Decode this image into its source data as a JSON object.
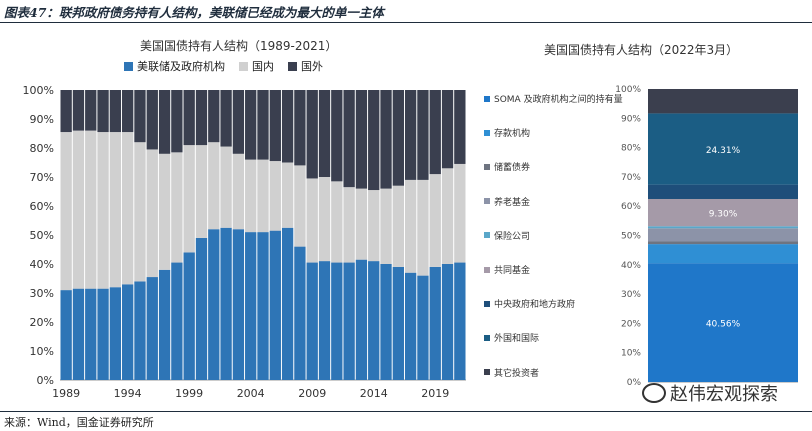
{
  "figure_title": "图表47：联邦政府债务持有人结构，美联储已经成为最大的单一主体",
  "source": "来源：Wind，国金证券研究所",
  "watermark": "赵伟宏观探索",
  "colors": {
    "fed": "#2e75b6",
    "domestic": "#d0d0d0",
    "foreign": "#3a3f4f"
  },
  "chart_data": [
    {
      "type": "bar",
      "title": "美国国债持有人结构（1989-2021）",
      "stacked": true,
      "percent": true,
      "ylim": [
        0,
        100
      ],
      "yticks": [
        "0%",
        "10%",
        "20%",
        "30%",
        "40%",
        "50%",
        "60%",
        "70%",
        "80%",
        "90%",
        "100%"
      ],
      "xtick_labels": [
        "1989",
        "1994",
        "1999",
        "2004",
        "2009",
        "2014",
        "2019"
      ],
      "legend": {
        "position": "top",
        "entries": [
          "美联储及政府机构",
          "国内",
          "国外"
        ]
      },
      "categories": [
        "1989",
        "1990",
        "1991",
        "1992",
        "1993",
        "1994",
        "1995",
        "1996",
        "1997",
        "1998",
        "1999",
        "2000",
        "2001",
        "2002",
        "2003",
        "2004",
        "2005",
        "2006",
        "2007",
        "2008",
        "2009",
        "2010",
        "2011",
        "2012",
        "2013",
        "2014",
        "2015",
        "2016",
        "2017",
        "2018",
        "2019",
        "2020",
        "2021"
      ],
      "series": [
        {
          "name": "美联储及政府机构",
          "color": "#2e75b6",
          "values": [
            31,
            31.5,
            31.5,
            31.5,
            32,
            33,
            34,
            35.5,
            38,
            40.5,
            44,
            49,
            52,
            52.5,
            52,
            51,
            51,
            51.5,
            52.5,
            46,
            40.5,
            41,
            40.5,
            40.5,
            41.5,
            41,
            40,
            39,
            37,
            36,
            39,
            40,
            40.5
          ]
        },
        {
          "name": "国内",
          "color": "#d0d0d0",
          "values": [
            54.5,
            54.5,
            54.5,
            54,
            53.5,
            52.5,
            48,
            44,
            40,
            38,
            37,
            32,
            30,
            28,
            26,
            25,
            25,
            24,
            22.5,
            28,
            29,
            29,
            28,
            26,
            24.5,
            24.5,
            26,
            28,
            32,
            33,
            32,
            33,
            34
          ]
        },
        {
          "name": "国外",
          "color": "#3a3f4f",
          "values": [
            14.5,
            14,
            14,
            14.5,
            14.5,
            14.5,
            18,
            20.5,
            22,
            21.5,
            19,
            19,
            18,
            19.5,
            22,
            24,
            24,
            24.5,
            25,
            26,
            30.5,
            30,
            31.5,
            33.5,
            34,
            34.5,
            34,
            33,
            31,
            31,
            29,
            27,
            25.5
          ]
        }
      ]
    },
    {
      "type": "bar",
      "title": "美国国债持有人结构（2022年3月）",
      "stacked": true,
      "percent": true,
      "ylim": [
        0,
        100
      ],
      "yticks": [
        "0%",
        "10%",
        "20%",
        "30%",
        "40%",
        "50%",
        "60%",
        "70%",
        "80%",
        "90%",
        "100%"
      ],
      "legend": {
        "position": "left"
      },
      "series": [
        {
          "name": "SOMA 及政府机构之间的持有量",
          "value": 40.56,
          "label": "40.56%",
          "color": "#1f77c9"
        },
        {
          "name": "存款机构",
          "value": 6.5,
          "label": "",
          "color": "#2f8fd4"
        },
        {
          "name": "储蓄债券",
          "value": 0.9,
          "label": "",
          "color": "#6e7480"
        },
        {
          "name": "养老基金",
          "value": 4.5,
          "label": "",
          "color": "#8c93a8"
        },
        {
          "name": "保险公司",
          "value": 0.7,
          "label": "",
          "color": "#5aa7c9"
        },
        {
          "name": "共同基金",
          "value": 9.3,
          "label": "9.30%",
          "color": "#a59aa8"
        },
        {
          "name": "中央政府和地方政府",
          "value": 4.9,
          "label": "",
          "color": "#1e4e7a"
        },
        {
          "name": "外国和国际",
          "value": 24.31,
          "label": "24.31%",
          "color": "#1b5d84"
        },
        {
          "name": "其它投资者",
          "value": 8.33,
          "label": "",
          "color": "#3b3f4e"
        }
      ]
    }
  ]
}
